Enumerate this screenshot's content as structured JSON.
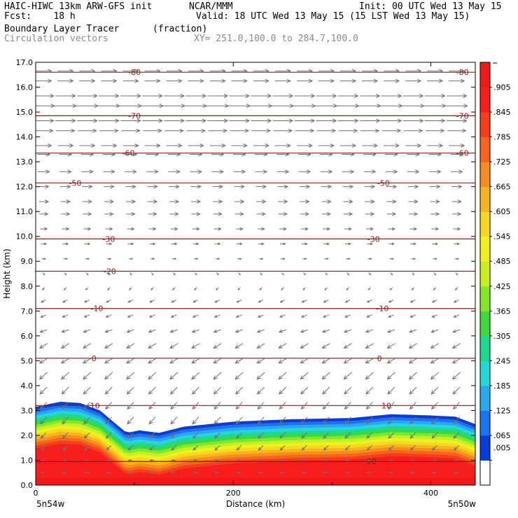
{
  "header": {
    "line1_left": "HAIC-HIWC 13km ARW-GFS init",
    "line1_mid": "NCAR/MMM",
    "line1_right": "Init: 00 UTC Wed 13 May 15",
    "line2_left": "Fcst:    18 h",
    "line2_right": "Valid: 18 UTC Wed 13 May 15 (15 LST Wed 13 May 15)",
    "line3_left": "Boundary Layer Tracer",
    "line3_mid": "(fraction)",
    "line4_left": "Circulation vectors",
    "line4_mid": "XY= 251.0,100.0 to 284.7,100.0"
  },
  "colors": {
    "contour": "#8b1a1a",
    "vector": "#707070"
  },
  "chart_data": {
    "type": "heatmap",
    "title": "Boundary Layer Tracer",
    "xlabel": "Distance (km)",
    "ylabel": "Height (km)",
    "xlim": [
      0,
      445
    ],
    "ylim": [
      0,
      17
    ],
    "x_ticks": [
      0,
      200,
      400
    ],
    "y_ticks": [
      "0.0",
      "1.0",
      "2.0",
      "3.0",
      "4.0",
      "5.0",
      "6.0",
      "7.0",
      "8.0",
      "9.0",
      "10.0",
      "11.0",
      "12.0",
      "13.0",
      "14.0",
      "15.0",
      "16.0",
      "17.0"
    ],
    "x_endpoint_labels": [
      "5n54w",
      "5n50w"
    ],
    "colorbar": {
      "labels": [
        ".005",
        ".065",
        ".125",
        ".185",
        ".245",
        ".305",
        ".365",
        ".425",
        ".485",
        ".545",
        ".605",
        ".665",
        ".725",
        ".785",
        ".845",
        ".905"
      ],
      "colors": [
        "#ffffff",
        "#0a3bd8",
        "#1c73f0",
        "#28a8f0",
        "#24d8d8",
        "#1ed88e",
        "#3cd83c",
        "#84e628",
        "#c8f01e",
        "#f0f01e",
        "#f8d81e",
        "#f8b41e",
        "#f88c1e",
        "#f8641e",
        "#f83c1e",
        "#f81e1e",
        "#f01818"
      ]
    },
    "tracer_top": [
      [
        0,
        3.15
      ],
      [
        25,
        3.35
      ],
      [
        45,
        3.3
      ],
      [
        65,
        3.0
      ],
      [
        80,
        2.5
      ],
      [
        92,
        2.1
      ],
      [
        105,
        2.2
      ],
      [
        125,
        2.1
      ],
      [
        150,
        2.35
      ],
      [
        200,
        2.55
      ],
      [
        260,
        2.65
      ],
      [
        320,
        2.7
      ],
      [
        360,
        2.85
      ],
      [
        400,
        2.8
      ],
      [
        425,
        2.75
      ],
      [
        445,
        2.45
      ]
    ],
    "tracer_bands": [
      {
        "value": 0.065,
        "offset": 0.0
      },
      {
        "value": 0.125,
        "offset": 0.12
      },
      {
        "value": 0.185,
        "offset": 0.24
      },
      {
        "value": 0.245,
        "offset": 0.36
      },
      {
        "value": 0.305,
        "offset": 0.48
      },
      {
        "value": 0.365,
        "offset": 0.6
      },
      {
        "value": 0.425,
        "offset": 0.72
      },
      {
        "value": 0.485,
        "offset": 0.84
      },
      {
        "value": 0.545,
        "offset": 0.96
      },
      {
        "value": 0.605,
        "offset": 1.08
      },
      {
        "value": 0.665,
        "offset": 1.2
      },
      {
        "value": 0.725,
        "offset": 1.32
      },
      {
        "value": 0.785,
        "offset": 1.44
      },
      {
        "value": 0.845,
        "offset": 1.56
      },
      {
        "value": 0.905,
        "offset": 1.68
      }
    ],
    "temperature_contours": [
      {
        "label": "-80",
        "height": 16.6,
        "label_x": [
          100,
          432
        ]
      },
      {
        "label": "-70",
        "height": 14.85,
        "label_x": [
          100,
          432
        ]
      },
      {
        "label": "-60",
        "height": 13.35,
        "label_x": [
          94,
          432
        ]
      },
      {
        "label": "-50",
        "height": 12.15,
        "label_x": [
          40,
          352
        ]
      },
      {
        "label": "-30",
        "height": 9.9,
        "label_x": [
          74,
          342
        ]
      },
      {
        "label": "-20",
        "height": 8.6,
        "label_x": [
          75,
          0
        ]
      },
      {
        "label": "-10",
        "height": 7.1,
        "label_x": [
          62,
          351
        ]
      },
      {
        "label": "0",
        "height": 5.1,
        "label_x": [
          59,
          348
        ]
      },
      {
        "label": "10",
        "height": 3.2,
        "label_x": [
          60,
          355
        ]
      },
      {
        "label": "20",
        "height": 0.95,
        "label_x": [
          0,
          340
        ]
      }
    ],
    "wind_vectors": [
      {
        "height": 16.65,
        "u": 1.0,
        "w": 0.0
      },
      {
        "height": 16.25,
        "u": 1.0,
        "w": 0.0
      },
      {
        "height": 15.65,
        "u": 1.3,
        "w": 0.0
      },
      {
        "height": 15.25,
        "u": 1.4,
        "w": 0.0
      },
      {
        "height": 14.65,
        "u": 1.3,
        "w": 0.0
      },
      {
        "height": 14.25,
        "u": 1.2,
        "w": 0.0
      },
      {
        "height": 13.65,
        "u": 1.0,
        "w": 0.0
      },
      {
        "height": 13.3,
        "u": 0.8,
        "w": 0.0
      },
      {
        "height": 12.6,
        "u": 0.75,
        "w": 0.0
      },
      {
        "height": 12.0,
        "u": 0.65,
        "w": 0.0
      },
      {
        "height": 11.4,
        "u": 0.6,
        "w": 0.0
      },
      {
        "height": 10.9,
        "u": 0.55,
        "w": 0.0
      },
      {
        "height": 10.3,
        "u": 0.45,
        "w": 0.0
      },
      {
        "height": 9.7,
        "u": 0.35,
        "w": 0.0
      },
      {
        "height": 9.1,
        "u": 0.25,
        "w": 0.0
      },
      {
        "height": 8.5,
        "u": 0.12,
        "w": -0.05
      },
      {
        "height": 7.9,
        "u": -0.15,
        "w": -0.05
      },
      {
        "height": 7.4,
        "u": -0.3,
        "w": -0.05
      },
      {
        "height": 6.8,
        "u": -0.35,
        "w": -0.05
      },
      {
        "height": 6.2,
        "u": -0.45,
        "w": -0.05
      },
      {
        "height": 5.6,
        "u": -0.5,
        "w": -0.1
      },
      {
        "height": 5.0,
        "u": -0.5,
        "w": -0.1
      },
      {
        "height": 4.4,
        "u": -0.5,
        "w": -0.15
      },
      {
        "height": 3.8,
        "u": -0.45,
        "w": -0.15
      },
      {
        "height": 3.2,
        "u": -0.4,
        "w": -0.15
      },
      {
        "height": 2.6,
        "u": -0.4,
        "w": -0.15
      },
      {
        "height": 2.0,
        "u": -0.35,
        "w": -0.12
      },
      {
        "height": 1.5,
        "u": -0.3,
        "w": -0.1
      },
      {
        "height": 1.0,
        "u": -0.25,
        "w": 0.0
      },
      {
        "height": 0.5,
        "u": -0.3,
        "w": 0.0
      }
    ]
  }
}
